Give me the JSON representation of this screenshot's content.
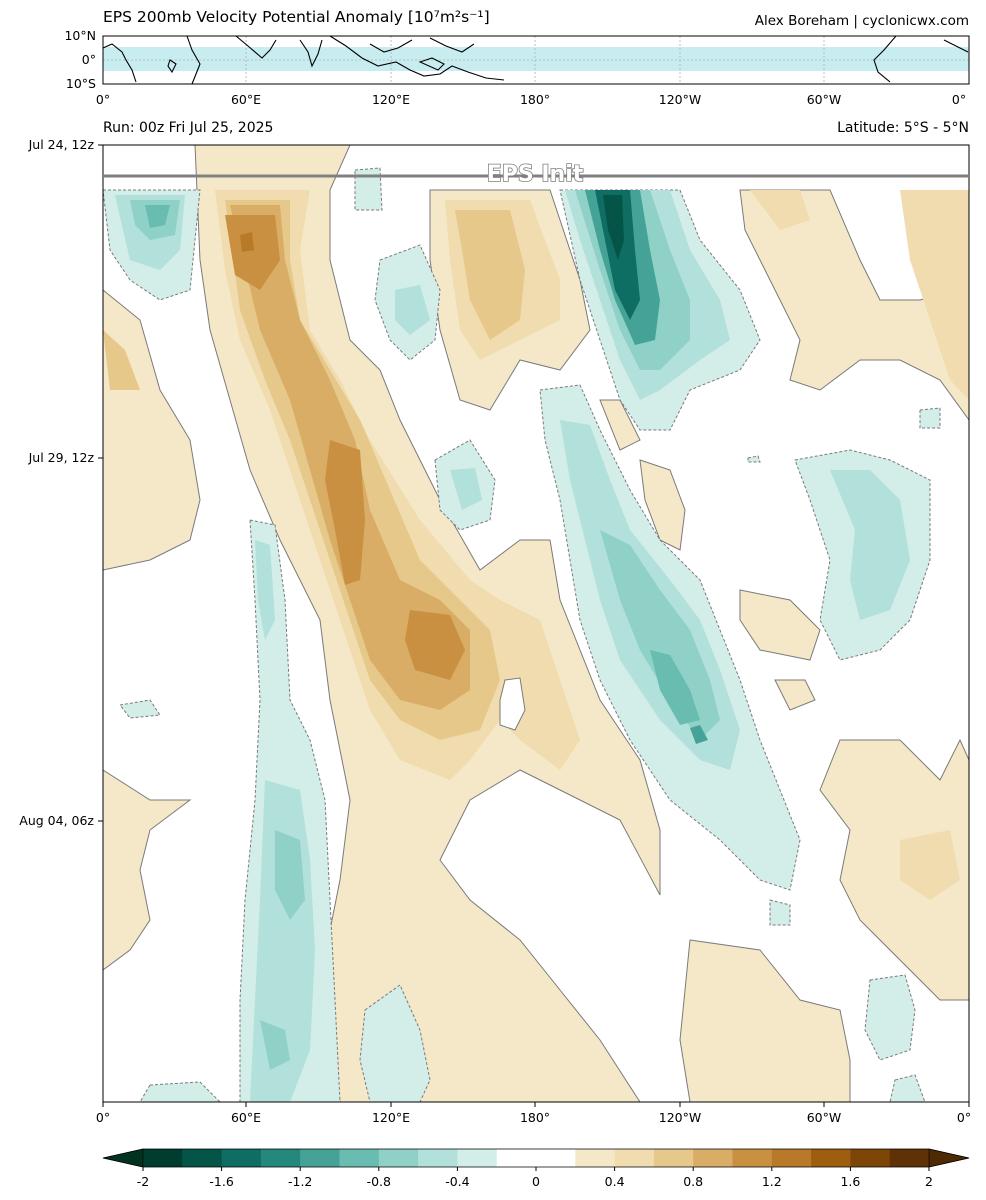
{
  "header": {
    "title": "EPS 200mb Velocity Potential Anomaly [10⁷m²s⁻¹]",
    "credit": "Alex Boreham | cyclonicwx.com",
    "run": "Run: 00z Fri Jul 25, 2025",
    "latitude": "Latitude: 5°S - 5°N",
    "init_label": "EPS Init"
  },
  "colors": {
    "positive": [
      "#f5e8c8",
      "#f0dcae",
      "#e6c88a",
      "#d9ad66",
      "#c89040",
      "#b87a28",
      "#9e5e10",
      "#7e4606",
      "#5e3204"
    ],
    "negative": [
      "#d3ede9",
      "#b2e0da",
      "#8fd1c6",
      "#68bcb0",
      "#44a396",
      "#24887c",
      "#0e6e64",
      "#045548",
      "#013c30"
    ],
    "zero": "#ffffff",
    "map_band": "#c8edf0"
  },
  "chart_data": [
    {
      "type": "map",
      "region": "tropical band, global longitude",
      "yticks": [
        "10°N",
        "0°",
        "10°S"
      ],
      "xticks": [
        "0°",
        "60°E",
        "120°E",
        "180°",
        "120°W",
        "60°W",
        "0°"
      ],
      "shaded_band": "5°S - 5°N"
    },
    {
      "type": "hovmoller",
      "x": {
        "ticks": [
          "0°",
          "60°E",
          "120°E",
          "180°",
          "120°W",
          "60°W",
          "0°"
        ]
      },
      "y": {
        "ticks": [
          "Jul 24, 12z",
          "Jul 29, 12z",
          "Aug 04, 06z"
        ]
      },
      "colorbar": {
        "ticks": [
          "-2",
          "-1.6",
          "-1.2",
          "-0.8",
          "-0.4",
          "0",
          "0.4",
          "0.8",
          "1.2",
          "1.6",
          "2"
        ],
        "range": [
          -2,
          2
        ],
        "step": 0.2
      },
      "contour_features": [
        {
          "sign": "positive",
          "peak": 1.1,
          "lon_start": 55,
          "lon_end": 150
        },
        {
          "sign": "positive",
          "peak": 0.7,
          "lon_start": 145,
          "lon_end": 165
        },
        {
          "sign": "negative",
          "peak": -1.7,
          "lon_start": 190,
          "lon_end": 255
        },
        {
          "sign": "negative",
          "peak": -0.8,
          "lon_start": 65,
          "lon_end": 85
        },
        {
          "sign": "negative",
          "peak": -0.8,
          "lon_start": 8,
          "lon_end": 30
        }
      ]
    }
  ]
}
